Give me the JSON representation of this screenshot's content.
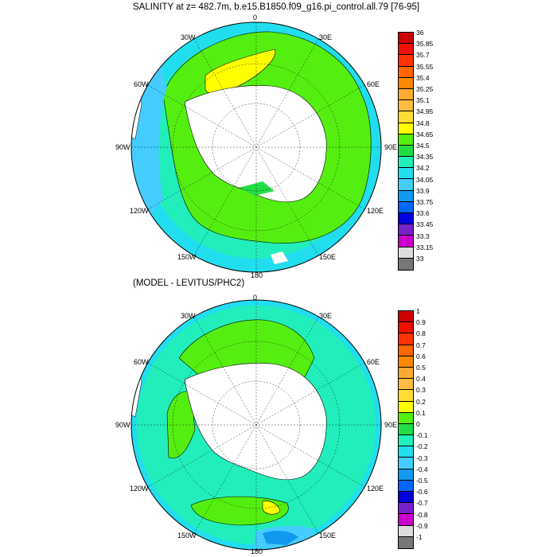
{
  "panels": [
    {
      "title": "SALINITY at z= 482.7m, b.e15.B1850.f09_g16.pi_control.all.79 [76-95]",
      "lon_labels": [
        "0",
        "30E",
        "60E",
        "90E",
        "120E",
        "150E",
        "180",
        "150W",
        "120W",
        "90W",
        "60W",
        "30W"
      ],
      "colorbar_labels": [
        "36",
        "35.85",
        "35.7",
        "35.55",
        "35.4",
        "35.25",
        "35.1",
        "34.95",
        "34.8",
        "34.65",
        "34.5",
        "34.35",
        "34.2",
        "34.05",
        "33.9",
        "33.75",
        "33.6",
        "33.45",
        "33.3",
        "33.15",
        "33"
      ],
      "colors": [
        "#cc0000",
        "#ee1100",
        "#ff3300",
        "#ff6600",
        "#ff8800",
        "#ffaa33",
        "#ffbb44",
        "#ffdd33",
        "#ffff00",
        "#55ee11",
        "#22dd44",
        "#22eebb",
        "#22ddee",
        "#44ccff",
        "#1199ee",
        "#0066ff",
        "#0000dd",
        "#7722cc",
        "#cc00cc",
        "#dddddd",
        "#777777"
      ]
    },
    {
      "title": "(MODEL - LEVITUS/PHC2)",
      "lon_labels": [
        "0",
        "30E",
        "60E",
        "90E",
        "120E",
        "150E",
        "180",
        "150W",
        "120W",
        "90W",
        "60W",
        "30W"
      ],
      "colorbar_labels": [
        "1",
        "0.9",
        "0.8",
        "0.7",
        "0.6",
        "0.5",
        "0.4",
        "0.3",
        "0.2",
        "0.1",
        "0",
        "-0.1",
        "-0.2",
        "-0.3",
        "-0.4",
        "-0.5",
        "-0.6",
        "-0.7",
        "-0.8",
        "-0.9",
        "-1"
      ],
      "colors": [
        "#cc0000",
        "#ee1100",
        "#ff3300",
        "#ff6600",
        "#ff8800",
        "#ffaa33",
        "#ffbb44",
        "#ffdd33",
        "#ffff00",
        "#55ee11",
        "#22dd44",
        "#22eebb",
        "#22ddee",
        "#44ccff",
        "#1199ee",
        "#0066ff",
        "#0000dd",
        "#7722cc",
        "#cc00cc",
        "#dddddd",
        "#777777"
      ]
    }
  ]
}
